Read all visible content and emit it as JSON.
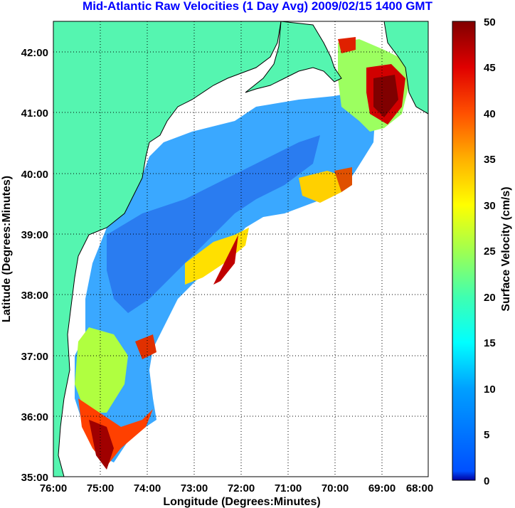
{
  "title": "Mid-Atlantic Raw Velocities (1 Day Avg) 2009/02/15 1400 GMT",
  "x_axis": {
    "label": "Longitude (Degrees:Minutes)",
    "ticks": [
      "76:00",
      "75:00",
      "74:00",
      "73:00",
      "72:00",
      "71:00",
      "70:00",
      "69:00",
      "68:00"
    ]
  },
  "y_axis": {
    "label": "Latitude (Degrees:Minutes)",
    "ticks": [
      "42:00",
      "41:00",
      "40:00",
      "39:00",
      "38:00",
      "37:00",
      "36:00",
      "35:00"
    ]
  },
  "colorbar": {
    "label": "Surface Velocity (cm/s)",
    "ticks": [
      "50",
      "45",
      "40",
      "35",
      "30",
      "25",
      "20",
      "15",
      "10",
      "5",
      "0"
    ],
    "range": [
      0,
      50
    ],
    "colormap": "jet"
  },
  "colors": {
    "land": "#55f5b0",
    "ocean_background": "#ffffff",
    "grid": "#000000",
    "title": "#0000ff"
  }
}
